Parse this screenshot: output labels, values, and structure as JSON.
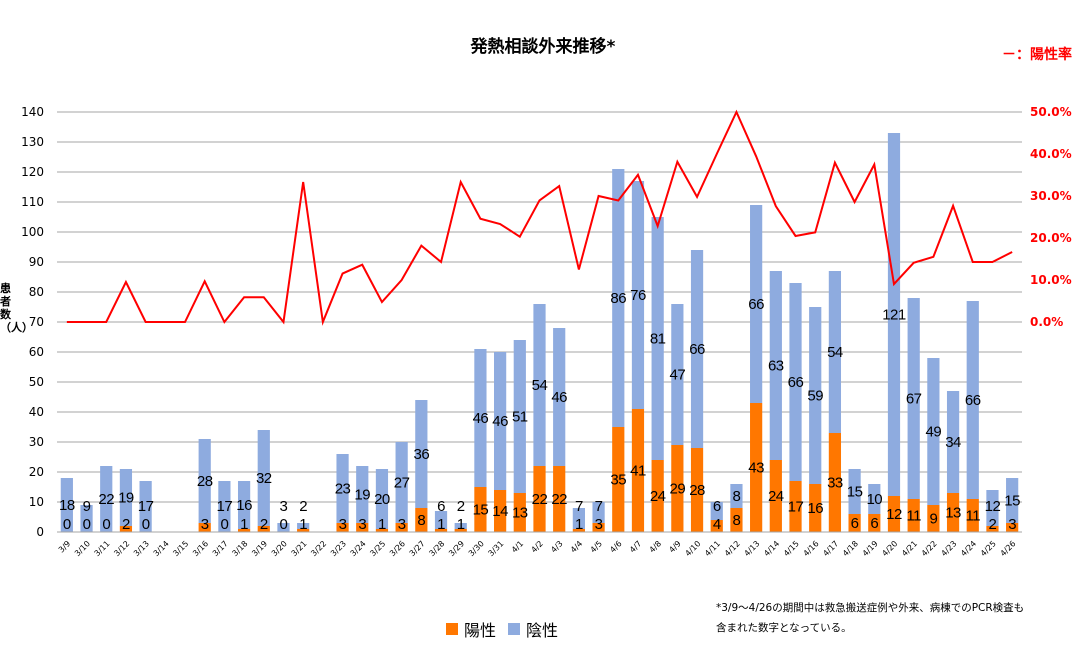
{
  "chart_data": {
    "type": "bar",
    "title": "発熱相談外来推移*",
    "ylabel": "患者数（人）",
    "ylim": [
      0,
      140
    ],
    "y2lim": [
      0,
      0.5
    ],
    "yticks": [
      "0",
      "10",
      "20",
      "30",
      "40",
      "50",
      "60",
      "70",
      "80",
      "90",
      "100",
      "110",
      "120",
      "130",
      "140"
    ],
    "y2ticks": [
      "0.0%",
      "10.0%",
      "20.0%",
      "30.0%",
      "40.0%",
      "50.0%"
    ],
    "rate_legend": "－：陽性率",
    "categories": [
      "3/9",
      "3/10",
      "3/11",
      "3/12",
      "3/13",
      "3/14",
      "3/15",
      "3/16",
      "3/17",
      "3/18",
      "3/19",
      "3/20",
      "3/21",
      "3/22",
      "3/23",
      "3/24",
      "3/25",
      "3/26",
      "3/27",
      "3/28",
      "3/29",
      "3/30",
      "3/31",
      "4/1",
      "4/2",
      "4/3",
      "4/4",
      "4/5",
      "4/6",
      "4/7",
      "4/8",
      "4/9",
      "4/10",
      "4/11",
      "4/12",
      "4/13",
      "4/14",
      "4/15",
      "4/16",
      "4/17",
      "4/18",
      "4/19",
      "4/20",
      "4/21",
      "4/22",
      "4/23",
      "4/24",
      "4/25",
      "4/26"
    ],
    "series": [
      {
        "name": "陽性",
        "color": "#ff7700",
        "values": [
          0,
          0,
          0,
          2,
          0,
          null,
          null,
          3,
          0,
          1,
          2,
          0,
          1,
          null,
          3,
          3,
          1,
          3,
          8,
          1,
          1,
          15,
          14,
          13,
          22,
          22,
          1,
          3,
          35,
          41,
          24,
          29,
          28,
          4,
          8,
          43,
          24,
          17,
          16,
          33,
          6,
          6,
          12,
          11,
          9,
          13,
          11,
          2,
          3
        ]
      },
      {
        "name": "陰性",
        "color": "#8eabdf",
        "values": [
          18,
          9,
          22,
          19,
          17,
          null,
          null,
          28,
          17,
          16,
          32,
          3,
          2,
          null,
          23,
          19,
          20,
          27,
          36,
          6,
          2,
          46,
          46,
          51,
          54,
          46,
          7,
          7,
          86,
          76,
          81,
          47,
          66,
          6,
          8,
          66,
          63,
          66,
          59,
          54,
          15,
          10,
          121,
          67,
          49,
          34,
          66,
          12,
          15
        ]
      }
    ],
    "line": {
      "name": "陽性率",
      "color": "#ff0000"
    },
    "legend": [
      "陽性",
      "陰性"
    ],
    "note": [
      "*3/9～4/26の期間中は救急搬送症例や外来、病棟でのPCR検査も",
      "含まれた数字となっている。"
    ]
  }
}
